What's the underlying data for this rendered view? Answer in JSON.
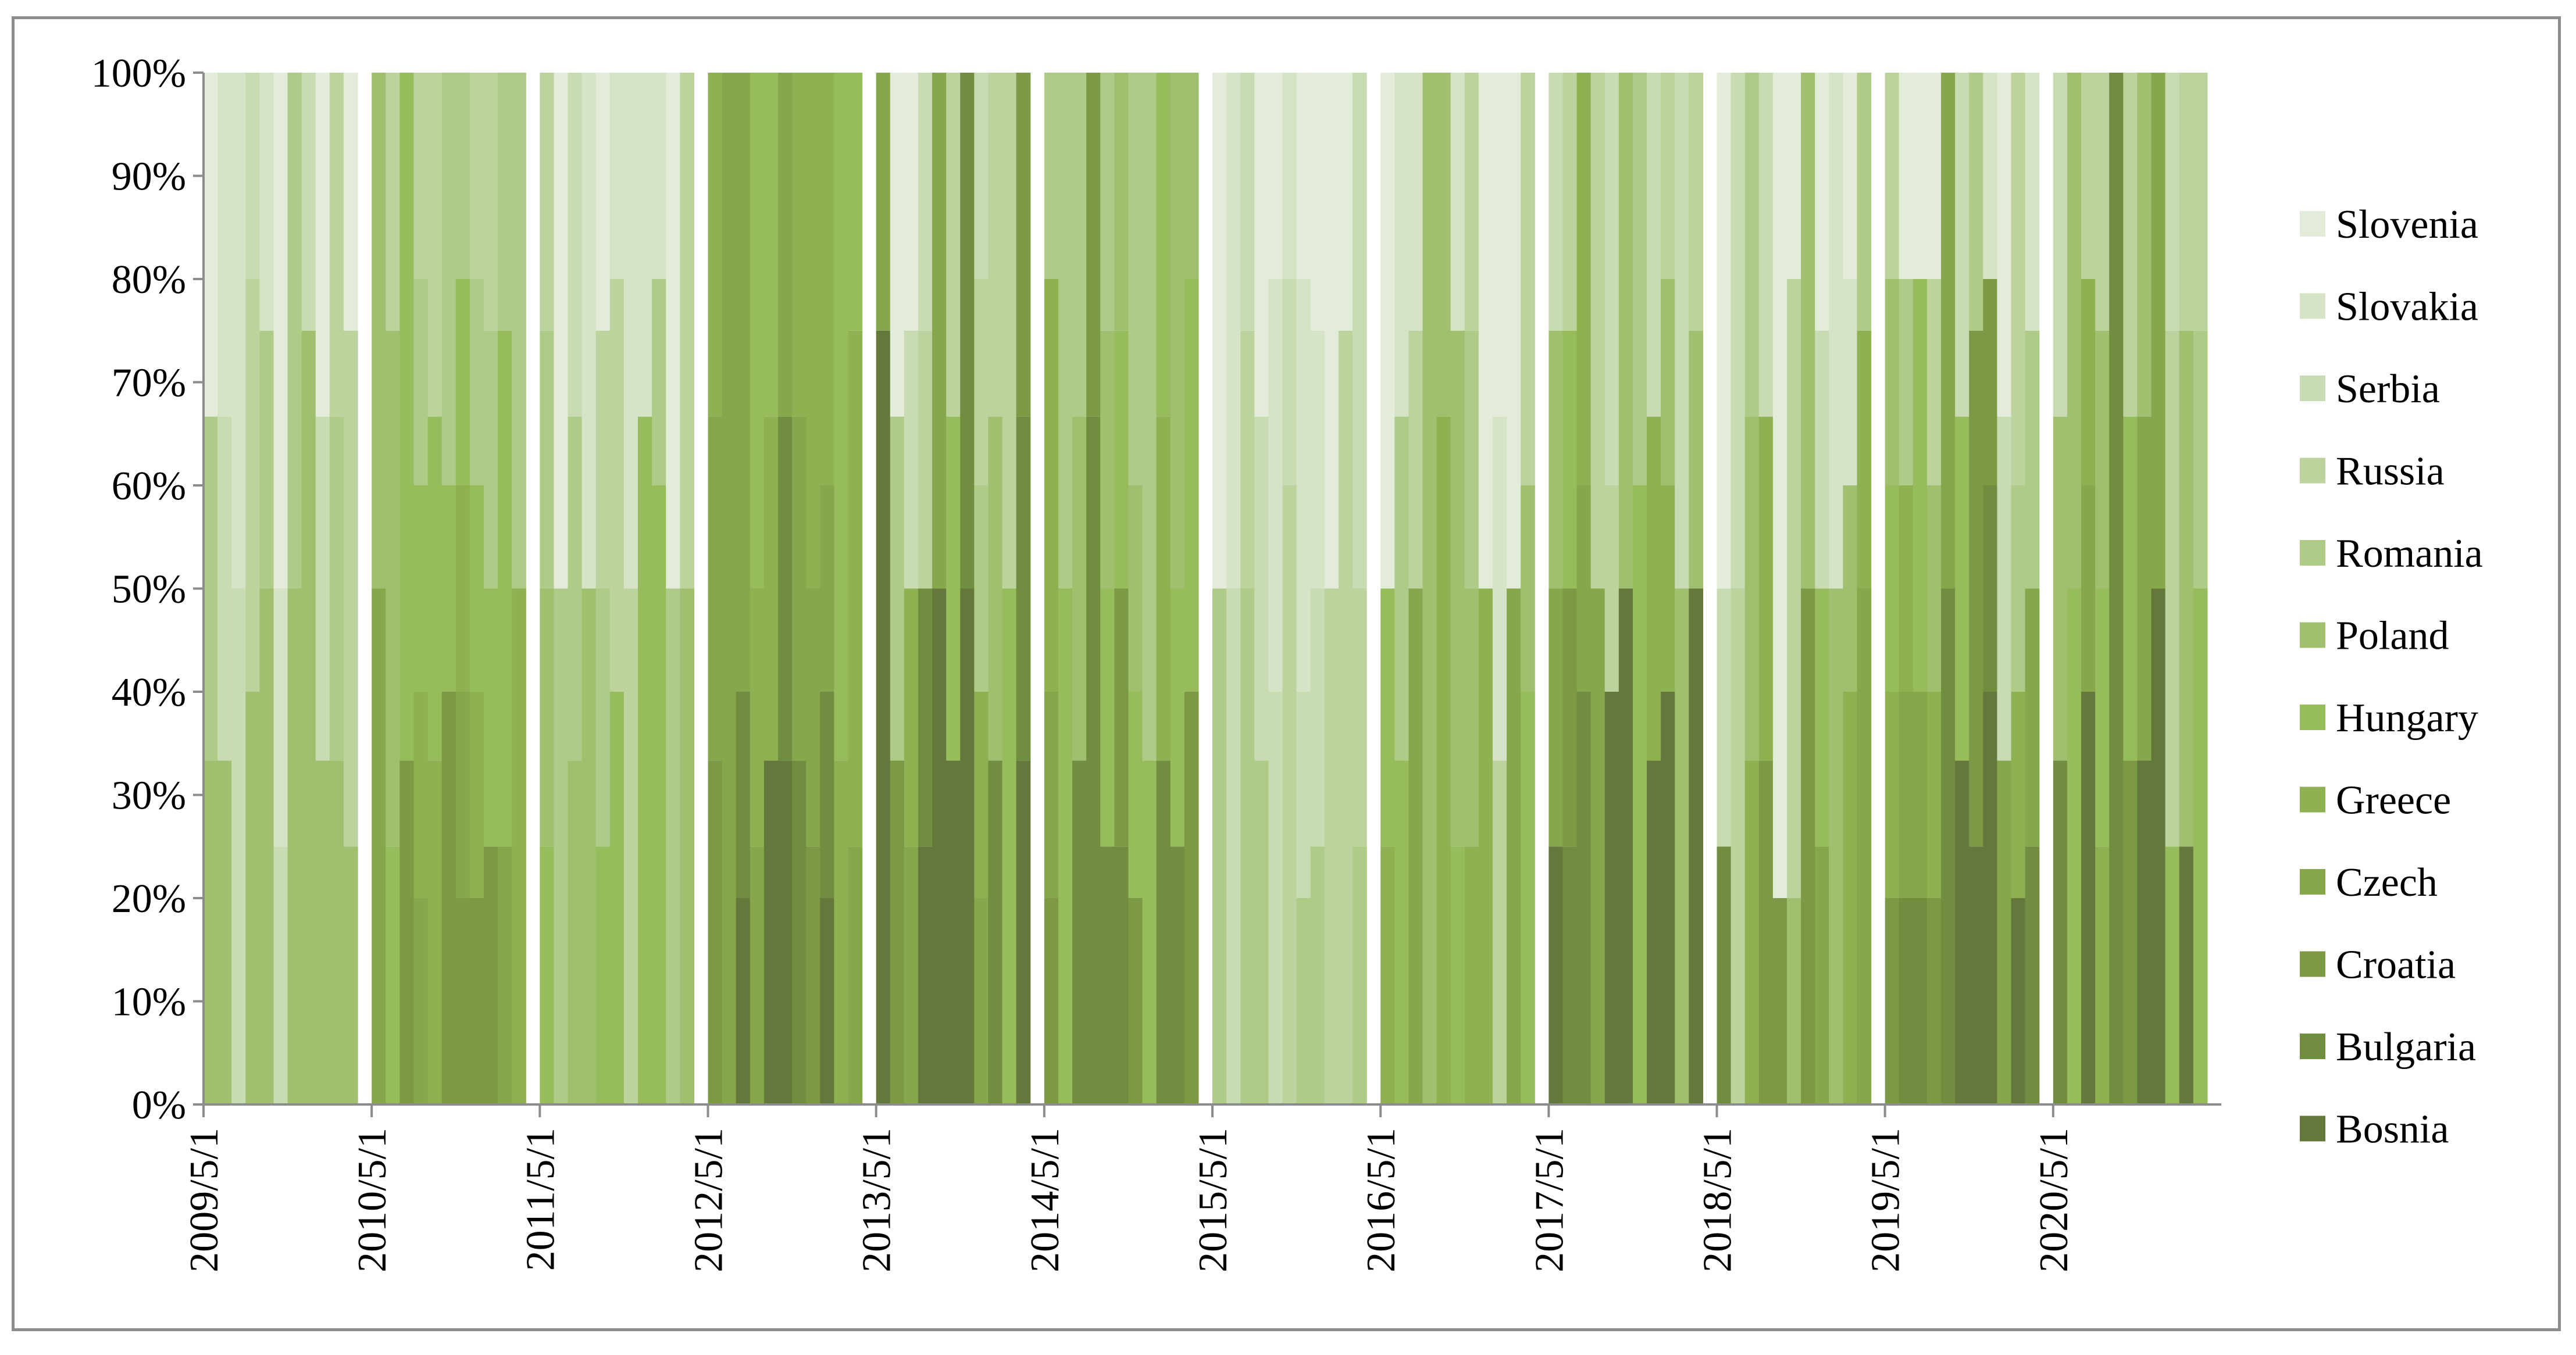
{
  "chart_data": {
    "type": "bar",
    "stacking": "percent",
    "title": "",
    "xlabel": "",
    "ylabel": "",
    "ylim": [
      0,
      100
    ],
    "y_ticks": [
      "0%",
      "10%",
      "20%",
      "30%",
      "40%",
      "50%",
      "60%",
      "70%",
      "80%",
      "90%",
      "100%"
    ],
    "x_tick_labels": [
      "2009/5/1",
      "2010/5/1",
      "2011/5/1",
      "2012/5/1",
      "2013/5/1",
      "2014/5/1",
      "2015/5/1",
      "2016/5/1",
      "2017/5/1",
      "2018/5/1",
      "2019/5/1",
      "2020/5/1"
    ],
    "legend_position": "right",
    "grid": false,
    "series": [
      {
        "name": "Slovenia",
        "color": "#e3ebd9"
      },
      {
        "name": "Slovakia",
        "color": "#d6e3c6"
      },
      {
        "name": "Serbia",
        "color": "#c9dbb2"
      },
      {
        "name": "Russia",
        "color": "#bcd39e"
      },
      {
        "name": "Romania",
        "color": "#aecb88"
      },
      {
        "name": "Poland",
        "color": "#a0c070"
      },
      {
        "name": "Hungary",
        "color": "#96bc5c"
      },
      {
        "name": "Greece",
        "color": "#8eb152"
      },
      {
        "name": "Czech",
        "color": "#86a74c"
      },
      {
        "name": "Croatia",
        "color": "#7c9a45"
      },
      {
        "name": "Bulgaria",
        "color": "#718d3f"
      },
      {
        "name": "Bosnia",
        "color": "#63783a"
      }
    ],
    "notes": "Monthly 100% stacked bars (approx. 144 months, May 2009 - Apr 2021), with a one-month gap before each May. Individual monthly shares are approximations of the dominant visible bands."
  }
}
